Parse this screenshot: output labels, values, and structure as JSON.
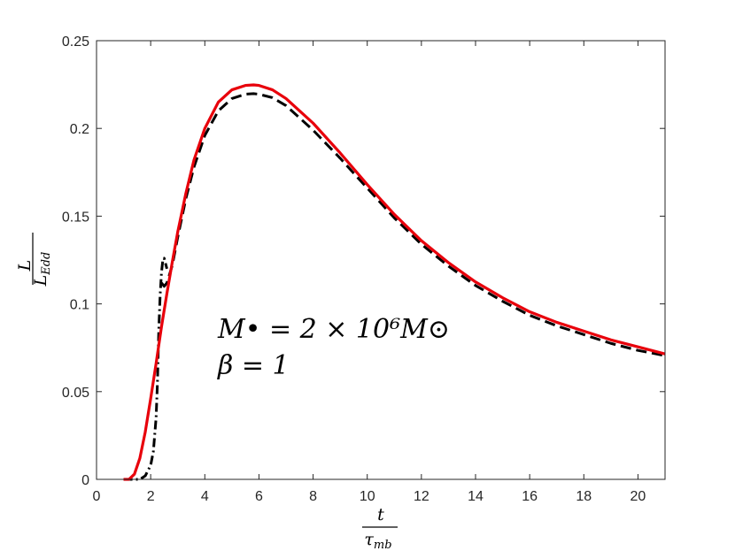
{
  "chart_data": {
    "type": "line",
    "title": "",
    "xlabel": {
      "numerator": "t",
      "denominator_base": "τ",
      "denominator_sub": "mb"
    },
    "ylabel": {
      "numerator": "L",
      "denominator_base": "L",
      "denominator_sub": "Edd"
    },
    "xlim": [
      0,
      21
    ],
    "ylim": [
      0,
      0.25
    ],
    "xticks": [
      0,
      2,
      4,
      6,
      8,
      10,
      12,
      14,
      16,
      18,
      20
    ],
    "yticks": [
      0,
      0.05,
      0.1,
      0.15,
      0.2,
      0.25
    ],
    "xtick_labels": [
      "0",
      "2",
      "4",
      "6",
      "8",
      "10",
      "12",
      "14",
      "16",
      "18",
      "20"
    ],
    "ytick_labels": [
      "0",
      "0.05",
      "0.1",
      "0.15",
      "0.2",
      "0.25"
    ],
    "grid": false,
    "box": true,
    "annotation": {
      "line1": "M• = 2 × 10⁶M⊙",
      "line2": "β = 1"
    },
    "series": [
      {
        "style": "solid",
        "color": "#e8000b",
        "x": [
          1.0,
          1.2,
          1.4,
          1.6,
          1.8,
          2.0,
          2.2,
          2.4,
          2.6,
          2.8,
          3.0,
          3.3,
          3.6,
          4.0,
          4.5,
          5.0,
          5.5,
          5.8,
          6.0,
          6.5,
          7.0,
          8.0,
          9.0,
          10.0,
          11.0,
          12.0,
          13.0,
          14.0,
          15.0,
          16.0,
          17.0,
          18.0,
          19.0,
          20.0,
          21.0
        ],
        "y": [
          0.0,
          0.0,
          0.003,
          0.012,
          0.027,
          0.046,
          0.066,
          0.087,
          0.106,
          0.124,
          0.141,
          0.163,
          0.182,
          0.2,
          0.215,
          0.222,
          0.2245,
          0.2248,
          0.2245,
          0.222,
          0.217,
          0.203,
          0.186,
          0.168,
          0.151,
          0.136,
          0.1235,
          0.1125,
          0.1035,
          0.0955,
          0.0895,
          0.0845,
          0.0795,
          0.0755,
          0.0715
        ]
      },
      {
        "style": "dashed",
        "color": "#000000",
        "x": [
          2.4,
          2.5,
          2.6,
          2.8,
          3.0,
          3.3,
          3.6,
          4.0,
          4.5,
          5.0,
          5.5,
          5.8,
          6.0,
          6.5,
          7.0,
          8.0,
          9.0,
          10.0,
          11.0,
          12.0,
          13.0,
          14.0,
          15.0,
          16.0,
          17.0,
          18.0,
          19.0,
          20.0,
          21.0
        ],
        "y": [
          0.112,
          0.11,
          0.112,
          0.122,
          0.138,
          0.16,
          0.178,
          0.196,
          0.21,
          0.217,
          0.2195,
          0.2198,
          0.2195,
          0.2175,
          0.213,
          0.199,
          0.183,
          0.166,
          0.149,
          0.134,
          0.1215,
          0.1105,
          0.1015,
          0.0935,
          0.0875,
          0.0825,
          0.0775,
          0.0735,
          0.0705
        ]
      },
      {
        "style": "dashdot",
        "color": "#000000",
        "x": [
          1.0,
          1.3,
          1.6,
          1.8,
          2.0,
          2.1,
          2.2,
          2.25,
          2.3,
          2.35,
          2.4,
          2.45,
          2.5,
          2.55,
          2.6
        ],
        "y": [
          0.0,
          0.0,
          0.0,
          0.002,
          0.008,
          0.016,
          0.035,
          0.055,
          0.085,
          0.105,
          0.118,
          0.125,
          0.126,
          0.123,
          0.12
        ]
      }
    ]
  }
}
